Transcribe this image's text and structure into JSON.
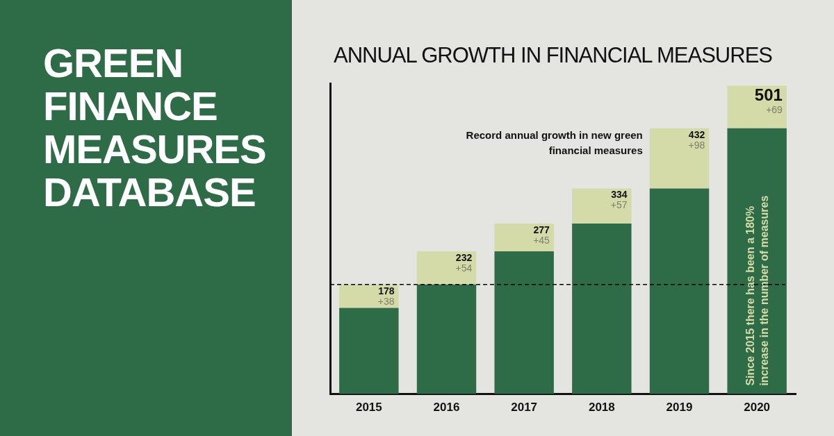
{
  "chart_data": {
    "type": "bar",
    "title": "GREEN FINANCE MEASURES DATABASE",
    "subtitle": "ANNUAL GROWTH IN FINANCIAL MEASURES",
    "categories": [
      "2015",
      "2016",
      "2017",
      "2018",
      "2019",
      "2020"
    ],
    "stacked": true,
    "series": [
      {
        "color": "#2e6b47",
        "values": [
          140,
          178,
          232,
          277,
          334,
          432
        ]
      },
      {
        "color": "#d4dba9",
        "values": [
          38,
          54,
          45,
          57,
          98,
          69
        ],
        "value_labels": [
          "+38",
          "+54",
          "+45",
          "+57",
          "+98",
          "+69"
        ]
      }
    ],
    "totals": [
      "178",
      "232",
      "277",
      "334",
      "432",
      "501"
    ],
    "ylim": [
      0,
      505
    ],
    "tick_labels": "x",
    "grid": false,
    "legend": false,
    "ref_lines": [
      {
        "axis": "y",
        "value": 178,
        "color": "#000000",
        "line_style": "dashed"
      }
    ],
    "annotations": [
      "Record annual growth in new green financial measures",
      "Since 2015 there has been a 180% increase in the number of measures"
    ]
  }
}
